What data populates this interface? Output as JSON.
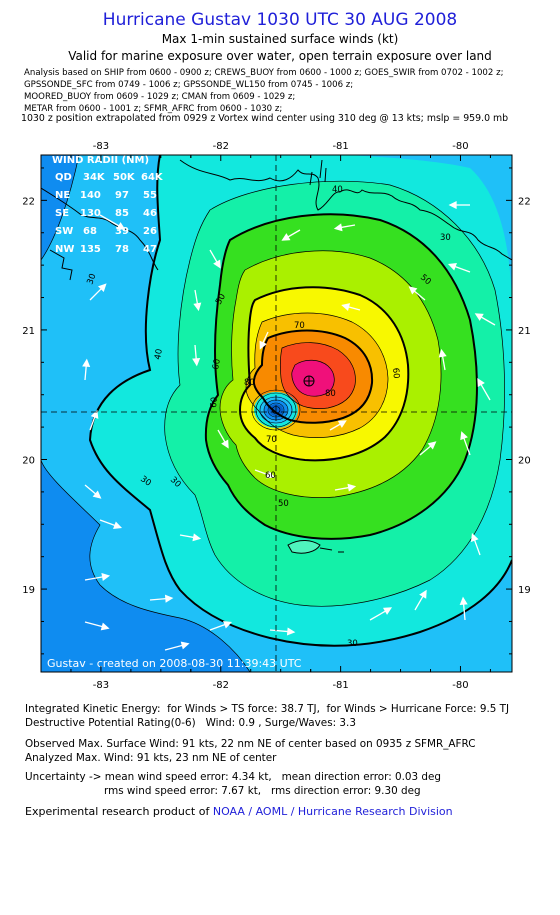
{
  "header": {
    "title": "Hurricane Gustav 1030 UTC 30 AUG 2008",
    "subtitle": "Max 1-min sustained surface winds (kt)",
    "valid_line": "Valid for marine exposure over water, open terrain exposure over land",
    "sources": [
      "Analysis based on  SHIP from 0600 - 0900 z;  CREWS_BUOY from 0600 - 1000 z;  GOES_SWIR from 0702 - 1002 z;",
      "GPSSONDE_SFC from 0749 - 1006 z;  GPSSONDE_WL150 from 0745 - 1006 z;",
      "MOORED_BUOY from 0609 - 1029 z;  CMAN from 0609 - 1029 z;",
      "METAR from 0600 - 1001 z;  SFMR_AFRC from 0600 - 1030 z;"
    ],
    "vortex_line": "1030 z position extrapolated from 0929 z Vortex wind center using 310 deg @ 13 kts; mslp = 959.0 mb"
  },
  "map": {
    "lon_ticks": [
      -83,
      -82,
      -81,
      -80
    ],
    "lon_labels": [
      "-83",
      "-82",
      "-81",
      "-80"
    ],
    "lat_ticks": [
      19,
      20,
      21,
      22
    ],
    "lat_labels": [
      "19",
      "20",
      "21",
      "22"
    ],
    "lon_range": [
      -83.5,
      -79.57
    ],
    "lat_range": [
      18.36,
      22.35
    ],
    "center": {
      "lon": -81.46,
      "lat": 20.35
    },
    "max_wind_center": {
      "lon": -81.27,
      "lat": 20.62
    },
    "contour_labels": [
      "30",
      "30",
      "30",
      "30",
      "40",
      "40",
      "50",
      "50",
      "50",
      "60",
      "60",
      "60",
      "60",
      "70",
      "70",
      "80",
      "80",
      "30"
    ],
    "created_label": "Gustav - created on 2008-08-30 11:39:43 UTC",
    "wind_radii": {
      "title": "WIND RADII (NM)",
      "header": [
        "QD",
        "34K",
        "50K",
        "64K"
      ],
      "rows": [
        [
          "NE",
          "140",
          "97",
          "55"
        ],
        [
          "SE",
          "130",
          "85",
          "46"
        ],
        [
          "SW",
          "68",
          "39",
          "26"
        ],
        [
          "NW",
          "135",
          "78",
          "47"
        ]
      ]
    },
    "colors": {
      "under20": "#0f8cf0",
      "c30": "#1fc0f8",
      "c40": "#12e8de",
      "c50": "#14f0a8",
      "c60": "#36e020",
      "c70": "#aaf000",
      "c80": "#f8f800",
      "c90": "#f8c000",
      "c100": "#f88a00",
      "c110": "#f84a1c",
      "c120": "#f0107a"
    }
  },
  "footer": {
    "ike": "Integrated Kinetic Energy:  for Winds > TS force: 38.7 TJ,  for Winds > Hurricane Force: 9.5 TJ",
    "dpr": "Destructive Potential Rating(0-6)   Wind: 0.9 , Surge/Waves: 3.3",
    "observed": "Observed Max. Surface Wind: 91 kts, 22 nm NE of center based on 0935 z SFMR_AFRC",
    "analyzed": "Analyzed Max. Wind: 91 kts, 23 nm NE of center",
    "uncertainty": "Uncertainty -> mean wind speed error: 4.34 kt,   mean direction error: 0.03 deg",
    "rms": "rms wind speed error: 7.67 kt,   rms direction error: 9.30 deg",
    "product_prefix": "Experimental research product of ",
    "product_org": "NOAA / AOML / Hurricane Research Division"
  }
}
